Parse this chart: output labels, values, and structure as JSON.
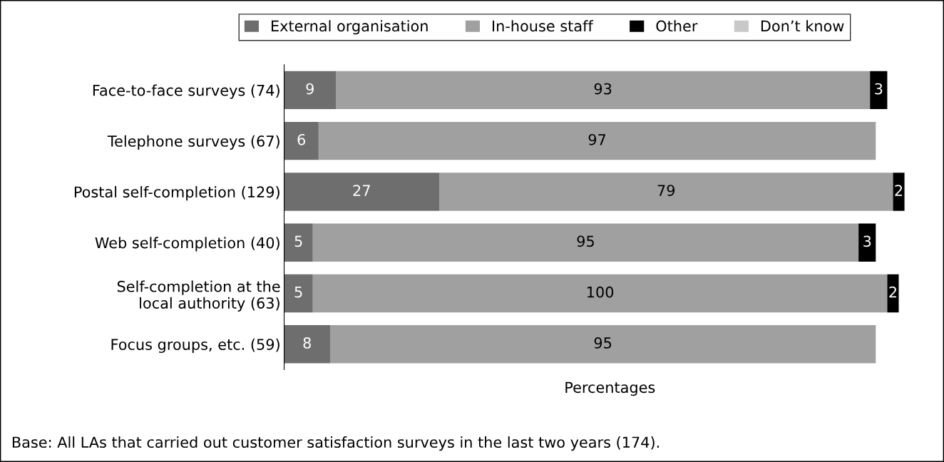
{
  "chart_data": {
    "type": "bar",
    "orientation": "horizontal",
    "stacked": true,
    "categories": [
      "Face-to-face surveys (74)",
      "Telephone surveys (67)",
      "Postal self-completion (129)",
      "Web self-completion (40)",
      "Self-completion at the\nlocal authority (63)",
      "Focus groups, etc. (59)"
    ],
    "series": [
      {
        "name": "External organisation",
        "color": "#6e6e6e",
        "values": [
          9,
          6,
          27,
          5,
          5,
          8
        ]
      },
      {
        "name": "In-house staff",
        "color": "#a0a0a0",
        "values": [
          93,
          97,
          79,
          95,
          100,
          95
        ]
      },
      {
        "name": "Other",
        "color": "#000000",
        "values": [
          3,
          null,
          2,
          3,
          2,
          null
        ]
      },
      {
        "name": "Don’t know",
        "color": "#c8c8c8",
        "values": [
          null,
          null,
          null,
          null,
          null,
          null
        ]
      }
    ],
    "data_labels": true,
    "xlabel": "Percentages",
    "tick_labels": "y",
    "grid": false,
    "legend": "top",
    "annotations": [
      "Base: All LAs that carried out customer satisfaction surveys in the last two years (174)."
    ]
  }
}
